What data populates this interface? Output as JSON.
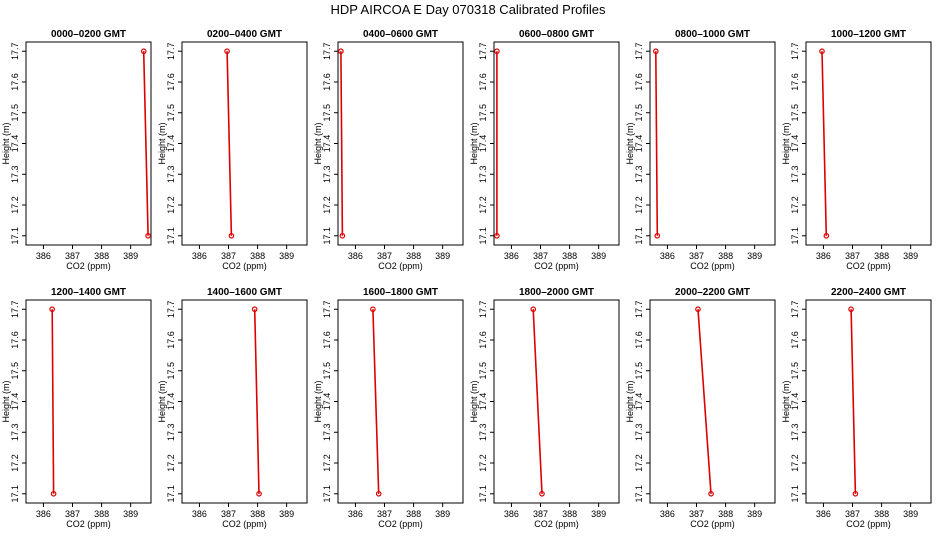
{
  "figure_title": "HDP AIRCOA E  Day 070318  Calibrated Profiles",
  "colors": {
    "series": "#dd0000",
    "axis": "#000000"
  },
  "chart_data": [
    {
      "type": "line",
      "title": "0000–0200 GMT",
      "xlabel": "CO2 (ppm)",
      "ylabel": "Height (m)",
      "xlim": [
        385.4,
        389.7
      ],
      "ylim": [
        17.07,
        17.73
      ],
      "xticks": [
        "386",
        "387",
        "388",
        "389"
      ],
      "yticks": [
        "17.1",
        "17.2",
        "17.3",
        "17.4",
        "17.5",
        "17.6",
        "17.7"
      ],
      "series": [
        {
          "x": [
            389.45,
            389.6
          ],
          "y": [
            17.7,
            17.1
          ]
        }
      ]
    },
    {
      "type": "line",
      "title": "0200–0400 GMT",
      "xlabel": "CO2 (ppm)",
      "ylabel": "Height (m)",
      "xlim": [
        385.4,
        389.7
      ],
      "ylim": [
        17.07,
        17.73
      ],
      "xticks": [
        "386",
        "387",
        "388",
        "389"
      ],
      "yticks": [
        "17.1",
        "17.2",
        "17.3",
        "17.4",
        "17.5",
        "17.6",
        "17.7"
      ],
      "series": [
        {
          "x": [
            386.95,
            387.1
          ],
          "y": [
            17.7,
            17.1
          ]
        }
      ]
    },
    {
      "type": "line",
      "title": "0400–0600 GMT",
      "xlabel": "CO2 (ppm)",
      "ylabel": "Height (m)",
      "xlim": [
        385.4,
        389.7
      ],
      "ylim": [
        17.07,
        17.73
      ],
      "xticks": [
        "386",
        "387",
        "388",
        "389"
      ],
      "yticks": [
        "17.1",
        "17.2",
        "17.3",
        "17.4",
        "17.5",
        "17.6",
        "17.7"
      ],
      "series": [
        {
          "x": [
            385.5,
            385.55
          ],
          "y": [
            17.7,
            17.1
          ]
        }
      ]
    },
    {
      "type": "line",
      "title": "0600–0800 GMT",
      "xlabel": "CO2 (ppm)",
      "ylabel": "Height (m)",
      "xlim": [
        385.4,
        389.7
      ],
      "ylim": [
        17.07,
        17.73
      ],
      "xticks": [
        "386",
        "387",
        "388",
        "389"
      ],
      "yticks": [
        "17.1",
        "17.2",
        "17.3",
        "17.4",
        "17.5",
        "17.6",
        "17.7"
      ],
      "series": [
        {
          "x": [
            385.5,
            385.5
          ],
          "y": [
            17.7,
            17.1
          ]
        }
      ]
    },
    {
      "type": "line",
      "title": "0800–1000 GMT",
      "xlabel": "CO2 (ppm)",
      "ylabel": "Height (m)",
      "xlim": [
        385.4,
        389.7
      ],
      "ylim": [
        17.07,
        17.73
      ],
      "xticks": [
        "386",
        "387",
        "388",
        "389"
      ],
      "yticks": [
        "17.1",
        "17.2",
        "17.3",
        "17.4",
        "17.5",
        "17.6",
        "17.7"
      ],
      "series": [
        {
          "x": [
            385.6,
            385.65
          ],
          "y": [
            17.7,
            17.1
          ]
        }
      ]
    },
    {
      "type": "line",
      "title": "1000–1200 GMT",
      "xlabel": "CO2 (ppm)",
      "ylabel": "Height (m)",
      "xlim": [
        385.4,
        389.7
      ],
      "ylim": [
        17.07,
        17.73
      ],
      "xticks": [
        "386",
        "387",
        "388",
        "389"
      ],
      "yticks": [
        "17.1",
        "17.2",
        "17.3",
        "17.4",
        "17.5",
        "17.6",
        "17.7"
      ],
      "series": [
        {
          "x": [
            385.95,
            386.1
          ],
          "y": [
            17.7,
            17.1
          ]
        }
      ]
    },
    {
      "type": "line",
      "title": "1200–1400 GMT",
      "xlabel": "CO2 (ppm)",
      "ylabel": "Height (m)",
      "xlim": [
        385.4,
        389.7
      ],
      "ylim": [
        17.07,
        17.73
      ],
      "xticks": [
        "386",
        "387",
        "388",
        "389"
      ],
      "yticks": [
        "17.1",
        "17.2",
        "17.3",
        "17.4",
        "17.5",
        "17.6",
        "17.7"
      ],
      "series": [
        {
          "x": [
            386.3,
            386.35
          ],
          "y": [
            17.7,
            17.1
          ]
        }
      ]
    },
    {
      "type": "line",
      "title": "1400–1600 GMT",
      "xlabel": "CO2 (ppm)",
      "ylabel": "Height (m)",
      "xlim": [
        385.4,
        389.7
      ],
      "ylim": [
        17.07,
        17.73
      ],
      "xticks": [
        "386",
        "387",
        "388",
        "389"
      ],
      "yticks": [
        "17.1",
        "17.2",
        "17.3",
        "17.4",
        "17.5",
        "17.6",
        "17.7"
      ],
      "series": [
        {
          "x": [
            387.9,
            388.05
          ],
          "y": [
            17.7,
            17.1
          ]
        }
      ]
    },
    {
      "type": "line",
      "title": "1600–1800 GMT",
      "xlabel": "CO2 (ppm)",
      "ylabel": "Height (m)",
      "xlim": [
        385.4,
        389.7
      ],
      "ylim": [
        17.07,
        17.73
      ],
      "xticks": [
        "386",
        "387",
        "388",
        "389"
      ],
      "yticks": [
        "17.1",
        "17.2",
        "17.3",
        "17.4",
        "17.5",
        "17.6",
        "17.7"
      ],
      "series": [
        {
          "x": [
            386.6,
            386.8
          ],
          "y": [
            17.7,
            17.1
          ]
        }
      ]
    },
    {
      "type": "line",
      "title": "1800–2000 GMT",
      "xlabel": "CO2 (ppm)",
      "ylabel": "Height (m)",
      "xlim": [
        385.4,
        389.7
      ],
      "ylim": [
        17.07,
        17.73
      ],
      "xticks": [
        "386",
        "387",
        "388",
        "389"
      ],
      "yticks": [
        "17.1",
        "17.2",
        "17.3",
        "17.4",
        "17.5",
        "17.6",
        "17.7"
      ],
      "series": [
        {
          "x": [
            386.75,
            387.05
          ],
          "y": [
            17.7,
            17.1
          ]
        }
      ]
    },
    {
      "type": "line",
      "title": "2000–2200 GMT",
      "xlabel": "CO2 (ppm)",
      "ylabel": "Height (m)",
      "xlim": [
        385.4,
        389.7
      ],
      "ylim": [
        17.07,
        17.73
      ],
      "xticks": [
        "386",
        "387",
        "388",
        "389"
      ],
      "yticks": [
        "17.1",
        "17.2",
        "17.3",
        "17.4",
        "17.5",
        "17.6",
        "17.7"
      ],
      "series": [
        {
          "x": [
            387.05,
            387.5
          ],
          "y": [
            17.7,
            17.1
          ]
        }
      ]
    },
    {
      "type": "line",
      "title": "2200–2400 GMT",
      "xlabel": "CO2 (ppm)",
      "ylabel": "Height (m)",
      "xlim": [
        385.4,
        389.7
      ],
      "ylim": [
        17.07,
        17.73
      ],
      "xticks": [
        "386",
        "387",
        "388",
        "389"
      ],
      "yticks": [
        "17.1",
        "17.2",
        "17.3",
        "17.4",
        "17.5",
        "17.6",
        "17.7"
      ],
      "series": [
        {
          "x": [
            386.95,
            387.1
          ],
          "y": [
            17.7,
            17.1
          ]
        }
      ]
    }
  ]
}
